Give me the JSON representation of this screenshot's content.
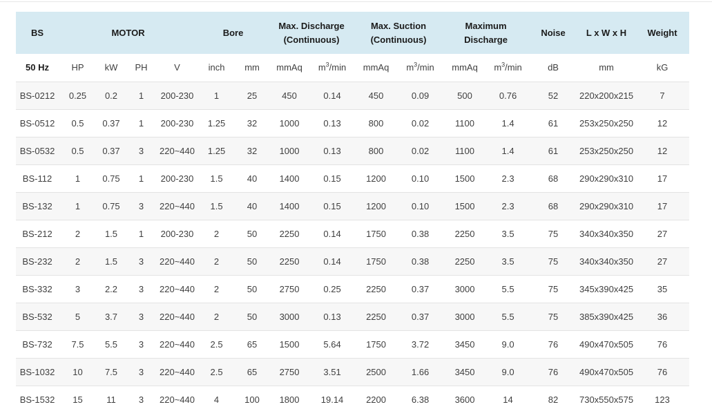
{
  "colors": {
    "header_bg": "#d6eaf2",
    "stripe_bg": "#f7f7f7",
    "border": "#e3e3e3",
    "heading_text": "#1b1b1b",
    "body_text": "#3f3f3f",
    "divider": "#e7e7e7"
  },
  "table": {
    "group_headers": [
      {
        "id": "bs",
        "label": "BS",
        "colspan": 1
      },
      {
        "id": "motor",
        "label": "MOTOR",
        "colspan": 4
      },
      {
        "id": "bore",
        "label": "Bore",
        "colspan": 2
      },
      {
        "id": "max-discharge-continuous",
        "label": "Max. Discharge\n(Continuous)",
        "colspan": 2
      },
      {
        "id": "max-suction-continuous",
        "label": "Max. Suction\n(Continuous)",
        "colspan": 2
      },
      {
        "id": "maximum-discharge",
        "label": "Maximum\nDischarge",
        "colspan": 2
      },
      {
        "id": "noise",
        "label": "Noise",
        "colspan": 1
      },
      {
        "id": "lwh",
        "label": "L x W x H",
        "colspan": 1
      },
      {
        "id": "weight",
        "label": "Weight",
        "colspan": 1
      }
    ],
    "unit_headers": [
      "50 Hz",
      "HP",
      "kW",
      "PH",
      "V",
      "inch",
      "mm",
      "mmAq",
      "m³/min",
      "mmAq",
      "m³/min",
      "mmAq",
      "m³/min",
      "dB",
      "mm",
      "kG"
    ],
    "rows": [
      [
        "BS-0212",
        "0.25",
        "0.2",
        "1",
        "200-230",
        "1",
        "25",
        "450",
        "0.14",
        "450",
        "0.09",
        "500",
        "0.76",
        "52",
        "220x200x215",
        "7"
      ],
      [
        "BS-0512",
        "0.5",
        "0.37",
        "1",
        "200-230",
        "1.25",
        "32",
        "1000",
        "0.13",
        "800",
        "0.02",
        "1100",
        "1.4",
        "61",
        "253x250x250",
        "12"
      ],
      [
        "BS-0532",
        "0.5",
        "0.37",
        "3",
        "220~440",
        "1.25",
        "32",
        "1000",
        "0.13",
        "800",
        "0.02",
        "1100",
        "1.4",
        "61",
        "253x250x250",
        "12"
      ],
      [
        "BS-112",
        "1",
        "0.75",
        "1",
        "200-230",
        "1.5",
        "40",
        "1400",
        "0.15",
        "1200",
        "0.10",
        "1500",
        "2.3",
        "68",
        "290x290x310",
        "17"
      ],
      [
        "BS-132",
        "1",
        "0.75",
        "3",
        "220~440",
        "1.5",
        "40",
        "1400",
        "0.15",
        "1200",
        "0.10",
        "1500",
        "2.3",
        "68",
        "290x290x310",
        "17"
      ],
      [
        "BS-212",
        "2",
        "1.5",
        "1",
        "200-230",
        "2",
        "50",
        "2250",
        "0.14",
        "1750",
        "0.38",
        "2250",
        "3.5",
        "75",
        "340x340x350",
        "27"
      ],
      [
        "BS-232",
        "2",
        "1.5",
        "3",
        "220~440",
        "2",
        "50",
        "2250",
        "0.14",
        "1750",
        "0.38",
        "2250",
        "3.5",
        "75",
        "340x340x350",
        "27"
      ],
      [
        "BS-332",
        "3",
        "2.2",
        "3",
        "220~440",
        "2",
        "50",
        "2750",
        "0.25",
        "2250",
        "0.37",
        "3000",
        "5.5",
        "75",
        "345x390x425",
        "35"
      ],
      [
        "BS-532",
        "5",
        "3.7",
        "3",
        "220~440",
        "2",
        "50",
        "3000",
        "0.13",
        "2250",
        "0.37",
        "3000",
        "5.5",
        "75",
        "385x390x425",
        "36"
      ],
      [
        "BS-732",
        "7.5",
        "5.5",
        "3",
        "220~440",
        "2.5",
        "65",
        "1500",
        "5.64",
        "1750",
        "3.72",
        "3450",
        "9.0",
        "76",
        "490x470x505",
        "76"
      ],
      [
        "BS-1032",
        "10",
        "7.5",
        "3",
        "220~440",
        "2.5",
        "65",
        "2750",
        "3.51",
        "2500",
        "1.66",
        "3450",
        "9.0",
        "76",
        "490x470x505",
        "76"
      ],
      [
        "BS-1532",
        "15",
        "11",
        "3",
        "220~440",
        "4",
        "100",
        "1800",
        "19.14",
        "2200",
        "6.38",
        "3600",
        "14",
        "82",
        "730x550x575",
        "123"
      ]
    ]
  }
}
